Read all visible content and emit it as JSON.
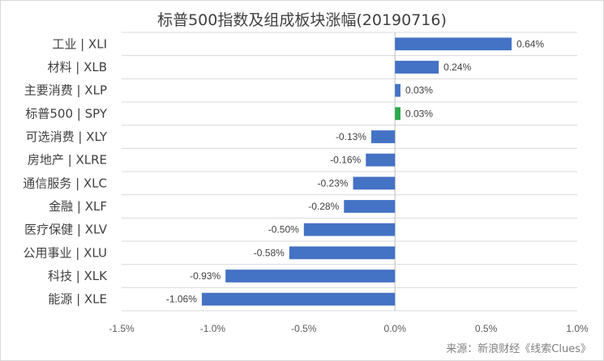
{
  "chart_data": {
    "type": "bar",
    "orientation": "horizontal",
    "title": "标普500指数及组成板块涨幅(20190716)",
    "categories": [
      "工业 | XLI",
      "材料 | XLB",
      "主要消费 | XLP",
      "标普500 | SPY",
      "可选消费 | XLY",
      "房地产 | XLRE",
      "通信服务 | XLC",
      "金融 | XLF",
      "医疗保健 | XLV",
      "公用事业 | XLU",
      "科技 | XLK",
      "能源 | XLE"
    ],
    "values": [
      0.64,
      0.24,
      0.03,
      0.03,
      -0.13,
      -0.16,
      -0.23,
      -0.28,
      -0.5,
      -0.58,
      -0.93,
      -1.06
    ],
    "value_labels": [
      "0.64%",
      "0.24%",
      "0.03%",
      "0.03%",
      "-0.13%",
      "-0.16%",
      "-0.23%",
      "-0.28%",
      "-0.50%",
      "-0.58%",
      "-0.93%",
      "-1.06%"
    ],
    "xlim": [
      -1.5,
      1.0
    ],
    "xticks": [
      -1.5,
      -1.0,
      -0.5,
      0.0,
      0.5,
      1.0
    ],
    "xtick_labels": [
      "-1.5%",
      "-1.0%",
      "-0.5%",
      "0.0%",
      "0.5%",
      "1.0%"
    ],
    "xlabel": "",
    "ylabel": "",
    "grid": true,
    "legend": "none",
    "colors": {
      "default": "#4472c4",
      "highlight": "#2ea84d",
      "grid": "#d9d9d9",
      "axis": "#bfbfbf"
    },
    "highlight_category": "标普500 | SPY"
  },
  "source": "来源：新浪财经《线索Clues》"
}
